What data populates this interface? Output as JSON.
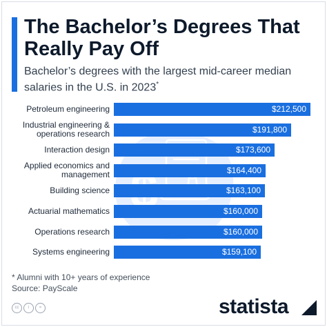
{
  "header": {
    "title": "The Bachelor’s Degrees That Really Pay Off",
    "subtitle": "Bachelor’s degrees with the largest mid-career median salaries in the U.S. in 2023",
    "subtitle_marker": "*"
  },
  "colors": {
    "accent": "#1a6fe0",
    "bar": "#1a6fe0",
    "title": "#0d1a2b",
    "background_shape": "#e6efff"
  },
  "decoration": {
    "icon": "diploma-with-dollar-icon",
    "glyph": "$"
  },
  "chart_data": {
    "type": "bar",
    "orientation": "horizontal",
    "categories": [
      "Petroleum engineering",
      "Industrial engineering & operations research",
      "Interaction design",
      "Applied economics and management",
      "Building science",
      "Actuarial mathematics",
      "Operations research",
      "Systems engineering"
    ],
    "values": [
      212500,
      191800,
      173600,
      164400,
      163100,
      160000,
      160000,
      159100
    ],
    "value_labels": [
      "$212,500",
      "$191,800",
      "$173,600",
      "$164,400",
      "$163,100",
      "$160,000",
      "$160,000",
      "$159,100"
    ],
    "unit": "USD",
    "xlim": [
      0,
      212500
    ],
    "grid": false,
    "legend": false
  },
  "footer": {
    "note": "* Alumni with 10+ years of experience",
    "source": "Source: PayScale",
    "license_icons": [
      "cc-icon",
      "by-icon",
      "nd-icon"
    ],
    "license_glyphs": [
      "cc",
      "i",
      "="
    ],
    "brand": "statista"
  }
}
